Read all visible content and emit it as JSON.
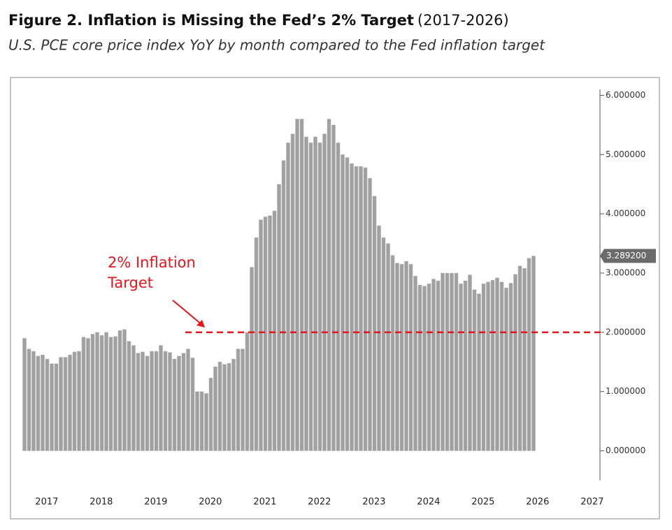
{
  "chart_data": {
    "type": "bar",
    "title": "Figure 2. Inflation is Missing the Fed’s 2% Target",
    "title_note": "(2017-2026)",
    "subtitle": "U.S. PCE core price index YoY by month compared to the Fed inflation target",
    "categories": [
      null,
      null,
      null,
      null,
      null,
      null,
      null,
      null,
      null,
      null,
      null,
      null,
      null,
      null,
      null,
      null,
      null,
      null,
      null,
      null,
      null,
      null,
      null,
      null,
      null,
      null,
      null,
      null,
      null,
      null,
      null,
      null,
      null,
      null,
      null,
      null,
      null,
      null,
      null,
      null,
      null,
      null,
      null,
      null,
      null,
      null,
      null,
      null,
      null,
      null,
      null,
      null,
      null,
      null,
      null,
      null,
      null,
      null,
      null,
      null,
      null,
      null,
      null,
      null,
      null,
      null,
      null,
      null,
      null,
      null,
      null,
      null,
      null,
      null,
      null,
      null,
      null,
      null,
      null,
      null,
      null,
      null,
      null,
      null,
      null,
      null,
      null,
      null,
      null,
      null,
      null,
      null,
      null,
      null,
      null,
      null,
      null,
      null,
      null,
      null,
      null,
      null,
      null,
      null,
      null,
      null,
      null,
      null,
      null,
      null,
      null,
      null,
      null
    ],
    "values": [
      1.9,
      1.72,
      1.68,
      1.6,
      1.62,
      1.55,
      1.47,
      1.47,
      1.58,
      1.58,
      1.62,
      1.67,
      1.68,
      1.92,
      1.9,
      1.97,
      2.0,
      1.95,
      2.0,
      1.92,
      1.93,
      2.03,
      2.05,
      1.85,
      1.78,
      1.65,
      1.67,
      1.6,
      1.68,
      1.68,
      1.78,
      1.68,
      1.66,
      1.55,
      1.6,
      1.65,
      1.72,
      1.57,
      1.0,
      1.0,
      0.97,
      1.23,
      1.42,
      1.5,
      1.46,
      1.48,
      1.55,
      1.72,
      1.72,
      2.0,
      3.1,
      3.6,
      3.9,
      3.95,
      3.97,
      4.05,
      4.5,
      4.9,
      5.2,
      5.35,
      5.6,
      5.6,
      5.3,
      5.2,
      5.3,
      5.2,
      5.35,
      5.6,
      5.5,
      5.2,
      5.0,
      4.95,
      4.85,
      4.8,
      4.8,
      4.78,
      4.6,
      4.3,
      3.8,
      3.6,
      3.5,
      3.3,
      3.17,
      3.15,
      3.2,
      3.15,
      2.95,
      2.8,
      2.78,
      2.82,
      2.9,
      2.87,
      3.0,
      3.0,
      3.0,
      3.0,
      2.82,
      2.87,
      2.97,
      2.72,
      2.65,
      2.82,
      2.85,
      2.88,
      2.92,
      2.85,
      2.75,
      2.83,
      2.98,
      3.12,
      3.08,
      3.25,
      3.2892
    ],
    "color": "#a0a0a0",
    "x_year_labels": [
      "2017",
      "2018",
      "2019",
      "2020",
      "2021",
      "2022",
      "2023",
      "2024",
      "2025",
      "2026",
      "2027"
    ],
    "ylim": [
      -0.5,
      6.1
    ],
    "yticks": [
      {
        "value": 0,
        "label": "0.000000"
      },
      {
        "value": 1,
        "label": "1.000000"
      },
      {
        "value": 2,
        "label": "2.000000"
      },
      {
        "value": 3,
        "label": "3.000000"
      },
      {
        "value": 4,
        "label": "4.000000"
      },
      {
        "value": 5,
        "label": "5.000000"
      },
      {
        "value": 6,
        "label": "6.000000"
      }
    ],
    "last_value_label": "3.289200",
    "target_line": {
      "value": 2,
      "color": "#e8141c"
    },
    "annotation_lines": [
      "2% Inflation",
      "Target"
    ]
  }
}
